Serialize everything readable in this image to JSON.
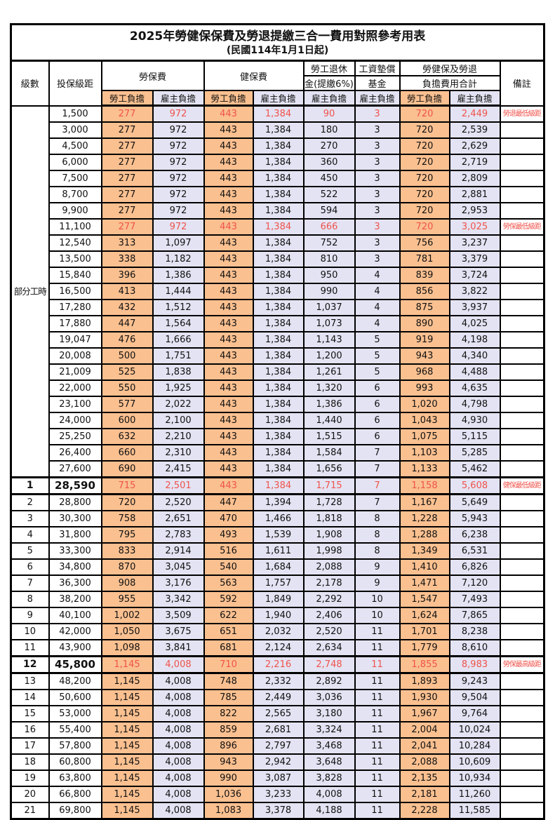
{
  "page": {
    "title": "2025年勞健保保費及勞退提繳三合一費用對照參考用表",
    "subtitle": "(民國114年1月1日起)"
  },
  "header": {
    "level": "級數",
    "bracket": "投保級距",
    "labor": "勞保費",
    "health": "健保費",
    "pension_l1": "勞工退休",
    "pension_l2": "金(提繳6%)",
    "fund_l1": "工資墊償",
    "fund_l2": "基金",
    "total_l1": "勞健保及勞退",
    "total_l2": "負擔費用合計",
    "remark": "備註",
    "employee": "勞工負擔",
    "employer": "雇主負擔"
  },
  "part_time": {
    "label": "部分工時",
    "span": 23
  },
  "colors": {
    "employee_bg": "#FAC090",
    "employer_bg": "#E3E3F3",
    "red_text": "#F0534B",
    "border": "#000000"
  },
  "rows": [
    {
      "level": "",
      "bracket": "1,500",
      "li_emp": "277",
      "li_er": "972",
      "hi_emp": "443",
      "hi_er": "1,384",
      "pension": "90",
      "fund": "3",
      "tot_emp": "720",
      "tot_er": "2,449",
      "remark": "勞退最低級距",
      "red": true
    },
    {
      "level": "",
      "bracket": "3,000",
      "li_emp": "277",
      "li_er": "972",
      "hi_emp": "443",
      "hi_er": "1,384",
      "pension": "180",
      "fund": "3",
      "tot_emp": "720",
      "tot_er": "2,539",
      "remark": ""
    },
    {
      "level": "",
      "bracket": "4,500",
      "li_emp": "277",
      "li_er": "972",
      "hi_emp": "443",
      "hi_er": "1,384",
      "pension": "270",
      "fund": "3",
      "tot_emp": "720",
      "tot_er": "2,629",
      "remark": ""
    },
    {
      "level": "",
      "bracket": "6,000",
      "li_emp": "277",
      "li_er": "972",
      "hi_emp": "443",
      "hi_er": "1,384",
      "pension": "360",
      "fund": "3",
      "tot_emp": "720",
      "tot_er": "2,719",
      "remark": ""
    },
    {
      "level": "",
      "bracket": "7,500",
      "li_emp": "277",
      "li_er": "972",
      "hi_emp": "443",
      "hi_er": "1,384",
      "pension": "450",
      "fund": "3",
      "tot_emp": "720",
      "tot_er": "2,809",
      "remark": ""
    },
    {
      "level": "",
      "bracket": "8,700",
      "li_emp": "277",
      "li_er": "972",
      "hi_emp": "443",
      "hi_er": "1,384",
      "pension": "522",
      "fund": "3",
      "tot_emp": "720",
      "tot_er": "2,881",
      "remark": ""
    },
    {
      "level": "",
      "bracket": "9,900",
      "li_emp": "277",
      "li_er": "972",
      "hi_emp": "443",
      "hi_er": "1,384",
      "pension": "594",
      "fund": "3",
      "tot_emp": "720",
      "tot_er": "2,953",
      "remark": ""
    },
    {
      "level": "",
      "bracket": "11,100",
      "li_emp": "277",
      "li_er": "972",
      "hi_emp": "443",
      "hi_er": "1,384",
      "pension": "666",
      "fund": "3",
      "tot_emp": "720",
      "tot_er": "3,025",
      "remark": "勞保最低級距",
      "red": true
    },
    {
      "level": "",
      "bracket": "12,540",
      "li_emp": "313",
      "li_er": "1,097",
      "hi_emp": "443",
      "hi_er": "1,384",
      "pension": "752",
      "fund": "3",
      "tot_emp": "756",
      "tot_er": "3,237",
      "remark": ""
    },
    {
      "level": "",
      "bracket": "13,500",
      "li_emp": "338",
      "li_er": "1,182",
      "hi_emp": "443",
      "hi_er": "1,384",
      "pension": "810",
      "fund": "3",
      "tot_emp": "781",
      "tot_er": "3,379",
      "remark": ""
    },
    {
      "level": "",
      "bracket": "15,840",
      "li_emp": "396",
      "li_er": "1,386",
      "hi_emp": "443",
      "hi_er": "1,384",
      "pension": "950",
      "fund": "4",
      "tot_emp": "839",
      "tot_er": "3,724",
      "remark": ""
    },
    {
      "level": "",
      "bracket": "16,500",
      "li_emp": "413",
      "li_er": "1,444",
      "hi_emp": "443",
      "hi_er": "1,384",
      "pension": "990",
      "fund": "4",
      "tot_emp": "856",
      "tot_er": "3,822",
      "remark": ""
    },
    {
      "level": "",
      "bracket": "17,280",
      "li_emp": "432",
      "li_er": "1,512",
      "hi_emp": "443",
      "hi_er": "1,384",
      "pension": "1,037",
      "fund": "4",
      "tot_emp": "875",
      "tot_er": "3,937",
      "remark": ""
    },
    {
      "level": "",
      "bracket": "17,880",
      "li_emp": "447",
      "li_er": "1,564",
      "hi_emp": "443",
      "hi_er": "1,384",
      "pension": "1,073",
      "fund": "4",
      "tot_emp": "890",
      "tot_er": "4,025",
      "remark": ""
    },
    {
      "level": "",
      "bracket": "19,047",
      "li_emp": "476",
      "li_er": "1,666",
      "hi_emp": "443",
      "hi_er": "1,384",
      "pension": "1,143",
      "fund": "5",
      "tot_emp": "919",
      "tot_er": "4,198",
      "remark": ""
    },
    {
      "level": "",
      "bracket": "20,008",
      "li_emp": "500",
      "li_er": "1,751",
      "hi_emp": "443",
      "hi_er": "1,384",
      "pension": "1,200",
      "fund": "5",
      "tot_emp": "943",
      "tot_er": "4,340",
      "remark": ""
    },
    {
      "level": "",
      "bracket": "21,009",
      "li_emp": "525",
      "li_er": "1,838",
      "hi_emp": "443",
      "hi_er": "1,384",
      "pension": "1,261",
      "fund": "5",
      "tot_emp": "968",
      "tot_er": "4,488",
      "remark": ""
    },
    {
      "level": "",
      "bracket": "22,000",
      "li_emp": "550",
      "li_er": "1,925",
      "hi_emp": "443",
      "hi_er": "1,384",
      "pension": "1,320",
      "fund": "6",
      "tot_emp": "993",
      "tot_er": "4,635",
      "remark": ""
    },
    {
      "level": "",
      "bracket": "23,100",
      "li_emp": "577",
      "li_er": "2,022",
      "hi_emp": "443",
      "hi_er": "1,384",
      "pension": "1,386",
      "fund": "6",
      "tot_emp": "1,020",
      "tot_er": "4,798",
      "remark": ""
    },
    {
      "level": "",
      "bracket": "24,000",
      "li_emp": "600",
      "li_er": "2,100",
      "hi_emp": "443",
      "hi_er": "1,384",
      "pension": "1,440",
      "fund": "6",
      "tot_emp": "1,043",
      "tot_er": "4,930",
      "remark": ""
    },
    {
      "level": "",
      "bracket": "25,250",
      "li_emp": "632",
      "li_er": "2,210",
      "hi_emp": "443",
      "hi_er": "1,384",
      "pension": "1,515",
      "fund": "6",
      "tot_emp": "1,075",
      "tot_er": "5,115",
      "remark": ""
    },
    {
      "level": "",
      "bracket": "26,400",
      "li_emp": "660",
      "li_er": "2,310",
      "hi_emp": "443",
      "hi_er": "1,384",
      "pension": "1,584",
      "fund": "7",
      "tot_emp": "1,103",
      "tot_er": "5,285",
      "remark": ""
    },
    {
      "level": "",
      "bracket": "27,600",
      "li_emp": "690",
      "li_er": "2,415",
      "hi_emp": "443",
      "hi_er": "1,384",
      "pension": "1,656",
      "fund": "7",
      "tot_emp": "1,133",
      "tot_er": "5,462",
      "remark": ""
    },
    {
      "level": "1",
      "bracket": "28,590",
      "li_emp": "715",
      "li_er": "2,501",
      "hi_emp": "443",
      "hi_er": "1,384",
      "pension": "1,715",
      "fund": "7",
      "tot_emp": "1,158",
      "tot_er": "5,608",
      "remark": "健保最低級距",
      "red": true,
      "section": true
    },
    {
      "level": "2",
      "bracket": "28,800",
      "li_emp": "720",
      "li_er": "2,520",
      "hi_emp": "447",
      "hi_er": "1,394",
      "pension": "1,728",
      "fund": "7",
      "tot_emp": "1,167",
      "tot_er": "5,649",
      "remark": ""
    },
    {
      "level": "3",
      "bracket": "30,300",
      "li_emp": "758",
      "li_er": "2,651",
      "hi_emp": "470",
      "hi_er": "1,466",
      "pension": "1,818",
      "fund": "8",
      "tot_emp": "1,228",
      "tot_er": "5,943",
      "remark": ""
    },
    {
      "level": "4",
      "bracket": "31,800",
      "li_emp": "795",
      "li_er": "2,783",
      "hi_emp": "493",
      "hi_er": "1,539",
      "pension": "1,908",
      "fund": "8",
      "tot_emp": "1,288",
      "tot_er": "6,238",
      "remark": ""
    },
    {
      "level": "5",
      "bracket": "33,300",
      "li_emp": "833",
      "li_er": "2,914",
      "hi_emp": "516",
      "hi_er": "1,611",
      "pension": "1,998",
      "fund": "8",
      "tot_emp": "1,349",
      "tot_er": "6,531",
      "remark": ""
    },
    {
      "level": "6",
      "bracket": "34,800",
      "li_emp": "870",
      "li_er": "3,045",
      "hi_emp": "540",
      "hi_er": "1,684",
      "pension": "2,088",
      "fund": "9",
      "tot_emp": "1,410",
      "tot_er": "6,826",
      "remark": ""
    },
    {
      "level": "7",
      "bracket": "36,300",
      "li_emp": "908",
      "li_er": "3,176",
      "hi_emp": "563",
      "hi_er": "1,757",
      "pension": "2,178",
      "fund": "9",
      "tot_emp": "1,471",
      "tot_er": "7,120",
      "remark": ""
    },
    {
      "level": "8",
      "bracket": "38,200",
      "li_emp": "955",
      "li_er": "3,342",
      "hi_emp": "592",
      "hi_er": "1,849",
      "pension": "2,292",
      "fund": "10",
      "tot_emp": "1,547",
      "tot_er": "7,493",
      "remark": ""
    },
    {
      "level": "9",
      "bracket": "40,100",
      "li_emp": "1,002",
      "li_er": "3,509",
      "hi_emp": "622",
      "hi_er": "1,940",
      "pension": "2,406",
      "fund": "10",
      "tot_emp": "1,624",
      "tot_er": "7,865",
      "remark": ""
    },
    {
      "level": "10",
      "bracket": "42,000",
      "li_emp": "1,050",
      "li_er": "3,675",
      "hi_emp": "651",
      "hi_er": "2,032",
      "pension": "2,520",
      "fund": "11",
      "tot_emp": "1,701",
      "tot_er": "8,238",
      "remark": ""
    },
    {
      "level": "11",
      "bracket": "43,900",
      "li_emp": "1,098",
      "li_er": "3,841",
      "hi_emp": "681",
      "hi_er": "2,124",
      "pension": "2,634",
      "fund": "11",
      "tot_emp": "1,779",
      "tot_er": "8,610",
      "remark": ""
    },
    {
      "level": "12",
      "bracket": "45,800",
      "li_emp": "1,145",
      "li_er": "4,008",
      "hi_emp": "710",
      "hi_er": "2,216",
      "pension": "2,748",
      "fund": "11",
      "tot_emp": "1,855",
      "tot_er": "8,983",
      "remark": "勞保最高級距",
      "red": true,
      "section": true
    },
    {
      "level": "13",
      "bracket": "48,200",
      "li_emp": "1,145",
      "li_er": "4,008",
      "hi_emp": "748",
      "hi_er": "2,332",
      "pension": "2,892",
      "fund": "11",
      "tot_emp": "1,893",
      "tot_er": "9,243",
      "remark": ""
    },
    {
      "level": "14",
      "bracket": "50,600",
      "li_emp": "1,145",
      "li_er": "4,008",
      "hi_emp": "785",
      "hi_er": "2,449",
      "pension": "3,036",
      "fund": "11",
      "tot_emp": "1,930",
      "tot_er": "9,504",
      "remark": ""
    },
    {
      "level": "15",
      "bracket": "53,000",
      "li_emp": "1,145",
      "li_er": "4,008",
      "hi_emp": "822",
      "hi_er": "2,565",
      "pension": "3,180",
      "fund": "11",
      "tot_emp": "1,967",
      "tot_er": "9,764",
      "remark": ""
    },
    {
      "level": "16",
      "bracket": "55,400",
      "li_emp": "1,145",
      "li_er": "4,008",
      "hi_emp": "859",
      "hi_er": "2,681",
      "pension": "3,324",
      "fund": "11",
      "tot_emp": "2,004",
      "tot_er": "10,024",
      "remark": ""
    },
    {
      "level": "17",
      "bracket": "57,800",
      "li_emp": "1,145",
      "li_er": "4,008",
      "hi_emp": "896",
      "hi_er": "2,797",
      "pension": "3,468",
      "fund": "11",
      "tot_emp": "2,041",
      "tot_er": "10,284",
      "remark": ""
    },
    {
      "level": "18",
      "bracket": "60,800",
      "li_emp": "1,145",
      "li_er": "4,008",
      "hi_emp": "943",
      "hi_er": "2,942",
      "pension": "3,648",
      "fund": "11",
      "tot_emp": "2,088",
      "tot_er": "10,609",
      "remark": ""
    },
    {
      "level": "19",
      "bracket": "63,800",
      "li_emp": "1,145",
      "li_er": "4,008",
      "hi_emp": "990",
      "hi_er": "3,087",
      "pension": "3,828",
      "fund": "11",
      "tot_emp": "2,135",
      "tot_er": "10,934",
      "remark": ""
    },
    {
      "level": "20",
      "bracket": "66,800",
      "li_emp": "1,145",
      "li_er": "4,008",
      "hi_emp": "1,036",
      "hi_er": "3,233",
      "pension": "4,008",
      "fund": "11",
      "tot_emp": "2,181",
      "tot_er": "11,260",
      "remark": ""
    },
    {
      "level": "21",
      "bracket": "69,800",
      "li_emp": "1,145",
      "li_er": "4,008",
      "hi_emp": "1,083",
      "hi_er": "3,378",
      "pension": "4,188",
      "fund": "11",
      "tot_emp": "2,228",
      "tot_er": "11,585",
      "remark": ""
    }
  ]
}
